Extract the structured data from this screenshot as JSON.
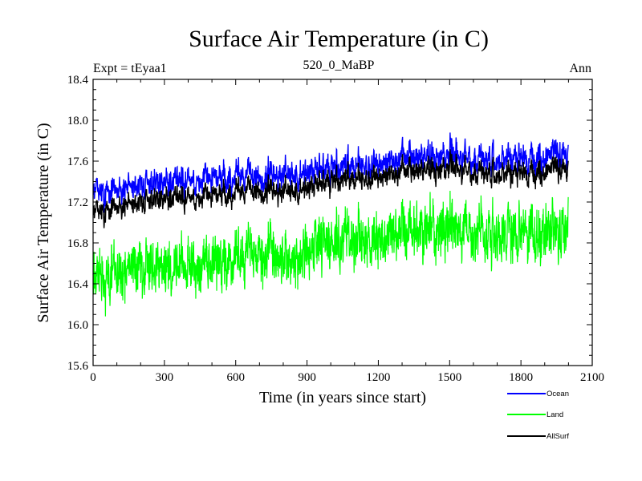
{
  "chart_data": {
    "type": "line",
    "title": "Surface Air Temperature (in C)",
    "subtitle_left": "Expt = tEyaa1",
    "subtitle_center": "520_0_MaBP",
    "subtitle_right": "Ann",
    "xlabel": "Time (in years since start)",
    "ylabel": "Surface Air Temperature (in C)",
    "xlim": [
      0,
      2100
    ],
    "ylim": [
      15.6,
      18.4
    ],
    "xticks": [
      0,
      300,
      600,
      900,
      1200,
      1500,
      1800,
      2100
    ],
    "yticks": [
      15.6,
      16.0,
      16.4,
      16.8,
      17.2,
      17.6,
      18.0,
      18.4
    ],
    "xtick_labels": [
      "0",
      "300",
      "600",
      "900",
      "1200",
      "1500",
      "1800",
      "2100"
    ],
    "ytick_labels": [
      "15.6",
      "16.0",
      "16.4",
      "16.8",
      "17.2",
      "17.6",
      "18.0",
      "18.4"
    ],
    "n_years": 2000,
    "series": [
      {
        "name": "Ocean",
        "color": "#0000ff",
        "noise_amplitude": 0.24,
        "trend_knots_x": [
          0,
          100,
          200,
          300,
          400,
          500,
          600,
          700,
          800,
          900,
          1000,
          1100,
          1200,
          1300,
          1400,
          1500,
          1600,
          1700,
          1800,
          1900,
          2000
        ],
        "trend_knots_y": [
          17.28,
          17.33,
          17.37,
          17.4,
          17.42,
          17.44,
          17.46,
          17.46,
          17.44,
          17.47,
          17.53,
          17.55,
          17.58,
          17.61,
          17.65,
          17.68,
          17.62,
          17.6,
          17.65,
          17.63,
          17.66
        ]
      },
      {
        "name": "Land",
        "color": "#00ff00",
        "noise_amplitude": 0.42,
        "trend_knots_x": [
          0,
          100,
          200,
          300,
          400,
          500,
          600,
          700,
          800,
          900,
          1000,
          1100,
          1200,
          1300,
          1400,
          1500,
          1600,
          1700,
          1800,
          1900,
          2000
        ],
        "trend_knots_y": [
          16.4,
          16.52,
          16.55,
          16.58,
          16.57,
          16.6,
          16.65,
          16.68,
          16.62,
          16.7,
          16.82,
          16.84,
          16.86,
          16.9,
          16.94,
          16.98,
          16.9,
          16.87,
          16.9,
          16.88,
          16.9
        ]
      },
      {
        "name": "AllSurf",
        "color": "#000000",
        "noise_amplitude": 0.2,
        "trend_knots_x": [
          0,
          100,
          200,
          300,
          400,
          500,
          600,
          700,
          800,
          900,
          1000,
          1100,
          1200,
          1300,
          1400,
          1500,
          1600,
          1700,
          1800,
          1900,
          2000
        ],
        "trend_knots_y": [
          17.08,
          17.16,
          17.2,
          17.24,
          17.25,
          17.27,
          17.3,
          17.32,
          17.28,
          17.32,
          17.4,
          17.42,
          17.45,
          17.48,
          17.52,
          17.55,
          17.49,
          17.46,
          17.5,
          17.49,
          17.52
        ]
      }
    ],
    "legend_position": "bottom-right"
  }
}
